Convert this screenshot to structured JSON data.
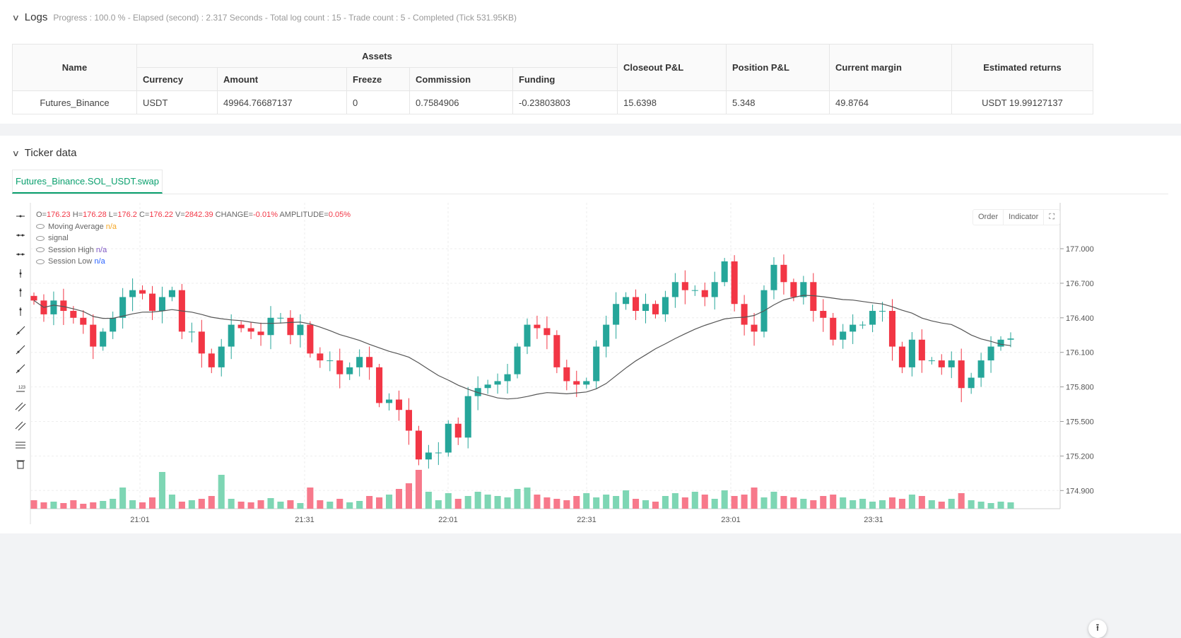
{
  "logs": {
    "title": "Logs",
    "summary": "Progress : 100.0 % - Elapsed (second) : 2.317  Seconds - Total log count : 15 - Trade count : 5 - Completed (Tick 531.95KB)",
    "headers": {
      "name": "Name",
      "assets": "Assets",
      "currency": "Currency",
      "amount": "Amount",
      "freeze": "Freeze",
      "commission": "Commission",
      "funding": "Funding",
      "closeout": "Closeout P&L",
      "position": "Position P&L",
      "margin": "Current margin",
      "returns": "Estimated returns"
    },
    "row": {
      "name": "Futures_Binance",
      "currency": "USDT",
      "amount": "49964.76687137",
      "freeze": "0",
      "commission": "0.7584906",
      "funding": "-0.23803803",
      "closeout": "15.6398",
      "position": "5.348",
      "margin": "49.8764",
      "returns": "USDT 19.99127137"
    }
  },
  "ticker": {
    "title": "Ticker data",
    "tab": "Futures_Binance.SOL_USDT.swap",
    "ohlc": {
      "o_label": "O=",
      "o": "176.23",
      "h_label": "H=",
      "h": "176.28",
      "l_label": "L=",
      "l": "176.2",
      "c_label": "C=",
      "c": "176.22",
      "v_label": "V=",
      "v": "2842.39",
      "change_label": "CHANGE=",
      "change": "-0.01%",
      "amp_label": "AMPLITUDE=",
      "amp": "0.05%"
    },
    "indicators": [
      {
        "name": "Moving Average",
        "value": "n/a"
      },
      {
        "name": "signal",
        "value": ""
      },
      {
        "name": "Session High",
        "value": "n/a"
      },
      {
        "name": "Session Low",
        "value": "n/a"
      }
    ],
    "buttons": {
      "order": "Order",
      "indicator": "Indicator"
    }
  },
  "chart_data": {
    "type": "candlestick",
    "ylim": [
      174.85,
      177.3
    ],
    "yticks": [
      "177.000",
      "176.700",
      "176.400",
      "176.100",
      "175.800",
      "175.500",
      "175.200",
      "174.900"
    ],
    "xticks": [
      "21:01",
      "21:31",
      "22:01",
      "22:31",
      "23:01",
      "23:31"
    ],
    "colors": {
      "up": "#26a69a",
      "down": "#f23645",
      "ma": "#555555"
    },
    "closes": [
      176.55,
      176.43,
      176.55,
      176.46,
      176.4,
      176.34,
      176.15,
      176.28,
      176.4,
      176.58,
      176.64,
      176.61,
      176.46,
      176.58,
      176.64,
      176.28,
      176.28,
      176.09,
      175.97,
      176.15,
      176.34,
      176.31,
      176.28,
      176.25,
      176.4,
      176.4,
      176.25,
      176.34,
      176.09,
      176.03,
      176.03,
      175.91,
      175.97,
      176.06,
      175.97,
      175.66,
      175.69,
      175.6,
      175.42,
      175.17,
      175.23,
      175.23,
      175.48,
      175.36,
      175.72,
      175.79,
      175.82,
      175.85,
      175.91,
      176.15,
      176.34,
      176.31,
      176.25,
      175.97,
      175.85,
      175.82,
      175.85,
      176.15,
      176.34,
      176.52,
      176.58,
      176.46,
      176.52,
      176.43,
      176.58,
      176.71,
      176.64,
      176.64,
      176.58,
      176.71,
      176.89,
      176.52,
      176.34,
      176.28,
      176.64,
      176.86,
      176.71,
      176.58,
      176.71,
      176.46,
      176.4,
      176.21,
      176.28,
      176.34,
      176.34,
      176.46,
      176.46,
      176.15,
      175.97,
      176.21,
      176.03,
      176.03,
      175.97,
      176.03,
      175.79,
      175.88,
      176.03,
      176.15,
      176.21,
      176.22
    ],
    "volumes": [
      12,
      9,
      10,
      8,
      12,
      7,
      9,
      11,
      14,
      30,
      12,
      9,
      16,
      52,
      20,
      10,
      12,
      14,
      18,
      48,
      14,
      10,
      9,
      12,
      15,
      10,
      12,
      8,
      30,
      12,
      10,
      14,
      9,
      11,
      18,
      16,
      20,
      28,
      36,
      55,
      24,
      12,
      22,
      14,
      18,
      24,
      20,
      18,
      16,
      28,
      30,
      20,
      16,
      14,
      12,
      18,
      22,
      16,
      20,
      18,
      26,
      14,
      12,
      10,
      18,
      22,
      16,
      24,
      20,
      14,
      26,
      18,
      20,
      30,
      16,
      24,
      18,
      16,
      14,
      12,
      18,
      20,
      16,
      12,
      14,
      10,
      12,
      16,
      14,
      20,
      18,
      12,
      10,
      14,
      22,
      12,
      10,
      8,
      10,
      9
    ]
  }
}
